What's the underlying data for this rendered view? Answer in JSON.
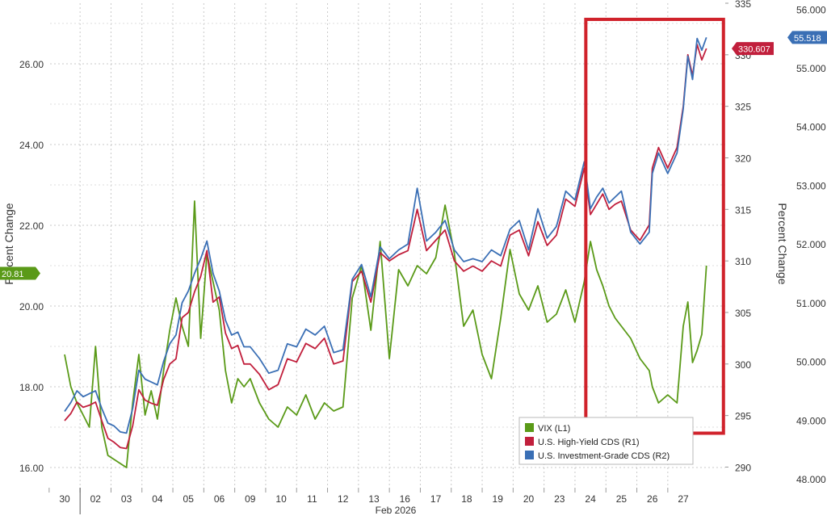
{
  "chart_data": {
    "type": "line",
    "title": "",
    "xlabel": "Feb 2026",
    "x_ticks": [
      "30",
      "02",
      "03",
      "04",
      "05",
      "06",
      "09",
      "10",
      "11",
      "12",
      "13",
      "16",
      "17",
      "18",
      "19",
      "20",
      "23",
      "24",
      "25",
      "26",
      "27"
    ],
    "axes": {
      "left": {
        "label": "Percent Change",
        "range": [
          15.5,
          27.5
        ],
        "ticks": [
          "16.00",
          "18.00",
          "20.00",
          "22.00",
          "24.00",
          "26.00"
        ]
      },
      "right1": {
        "label": "",
        "range": [
          288,
          335
        ],
        "ticks": [
          "290",
          "295",
          "300",
          "305",
          "310",
          "315",
          "320",
          "325",
          "330",
          "335"
        ]
      },
      "right2": {
        "label": "Percent Change",
        "range": [
          47.85,
          56.1
        ],
        "ticks": [
          "48.000",
          "49.000",
          "50.000",
          "51.000",
          "52.000",
          "53.000",
          "54.000",
          "55.000",
          "56.000"
        ]
      }
    },
    "grid": true,
    "legend_position": "bottom-right",
    "series": [
      {
        "name": "VIX (L1)",
        "axis": "left",
        "color": "#5a9a18",
        "last_label": "20.81",
        "x": [
          0,
          0.2,
          0.4,
          0.6,
          0.8,
          1.0,
          1.2,
          1.4,
          1.6,
          1.8,
          2.0,
          2.2,
          2.4,
          2.6,
          2.8,
          3.0,
          3.2,
          3.4,
          3.6,
          3.8,
          4.0,
          4.2,
          4.4,
          4.6,
          4.8,
          5.0,
          5.2,
          5.4,
          5.6,
          5.8,
          6.0,
          6.3,
          6.6,
          6.9,
          7.2,
          7.5,
          7.8,
          8.1,
          8.4,
          8.7,
          9.0,
          9.3,
          9.6,
          9.9,
          10.2,
          10.5,
          10.8,
          11.1,
          11.4,
          11.7,
          12.0,
          12.3,
          12.6,
          12.9,
          13.2,
          13.5,
          13.8,
          14.1,
          14.4,
          14.7,
          15.0,
          15.3,
          15.6,
          15.9,
          16.2,
          16.5,
          16.8,
          17.0,
          17.2,
          17.4,
          17.6,
          17.8,
          18.0,
          18.3,
          18.6,
          18.9,
          19.0,
          19.2,
          19.5,
          19.8,
          20.0,
          20.15,
          20.3,
          20.45,
          20.6,
          20.75
        ],
        "y": [
          18.8,
          18.0,
          17.6,
          17.3,
          17.0,
          19.0,
          17.0,
          16.3,
          16.2,
          16.1,
          16.0,
          17.6,
          18.8,
          17.3,
          17.9,
          17.2,
          18.4,
          19.4,
          20.2,
          19.5,
          19.0,
          22.6,
          19.2,
          21.3,
          20.6,
          19.9,
          18.4,
          17.6,
          18.2,
          18.0,
          18.2,
          17.6,
          17.2,
          17.0,
          17.5,
          17.3,
          17.8,
          17.2,
          17.6,
          17.4,
          17.5,
          20.2,
          21.0,
          19.4,
          21.6,
          18.7,
          20.9,
          20.5,
          21.0,
          20.8,
          21.2,
          22.5,
          21.3,
          19.5,
          19.9,
          18.8,
          18.2,
          19.7,
          21.4,
          20.3,
          19.9,
          20.5,
          19.6,
          19.8,
          20.4,
          19.6,
          20.6,
          21.6,
          20.9,
          20.5,
          20.0,
          19.7,
          19.5,
          19.2,
          18.7,
          18.4,
          18.0,
          17.6,
          17.8,
          17.6,
          19.5,
          20.1,
          18.6,
          18.9,
          19.3,
          21.0
        ]
      },
      {
        "name": "U.S. High-Yield CDS (R1)",
        "axis": "right1",
        "color": "#c11f3c",
        "last_label": "330.607",
        "x": [
          0,
          0.2,
          0.4,
          0.6,
          0.8,
          1.0,
          1.2,
          1.4,
          1.6,
          1.8,
          2.0,
          2.2,
          2.4,
          2.6,
          2.8,
          3.0,
          3.2,
          3.4,
          3.6,
          3.8,
          4.0,
          4.2,
          4.4,
          4.6,
          4.8,
          5.0,
          5.2,
          5.4,
          5.6,
          5.8,
          6.0,
          6.3,
          6.6,
          6.9,
          7.2,
          7.5,
          7.8,
          8.1,
          8.4,
          8.7,
          9.0,
          9.3,
          9.6,
          9.9,
          10.2,
          10.5,
          10.8,
          11.1,
          11.4,
          11.7,
          12.0,
          12.3,
          12.6,
          12.9,
          13.2,
          13.5,
          13.8,
          14.1,
          14.4,
          14.7,
          15.0,
          15.3,
          15.6,
          15.9,
          16.2,
          16.5,
          16.8,
          17.0,
          17.2,
          17.4,
          17.6,
          17.8,
          18.0,
          18.3,
          18.6,
          18.9,
          19.0,
          19.2,
          19.5,
          19.8,
          20.0,
          20.15,
          20.3,
          20.45,
          20.6,
          20.75
        ],
        "y": [
          294.5,
          295.2,
          296.3,
          295.8,
          296.0,
          296.3,
          294.5,
          292.8,
          292.4,
          291.9,
          291.8,
          294.0,
          297.5,
          296.5,
          296.2,
          296.0,
          298.5,
          300.0,
          300.5,
          304.5,
          305.0,
          307.0,
          308.5,
          311.0,
          306.0,
          306.5,
          303.0,
          301.5,
          301.8,
          300.0,
          300.0,
          299.0,
          297.5,
          298.0,
          300.5,
          300.2,
          302.0,
          301.5,
          302.5,
          300.0,
          300.3,
          308.0,
          309.0,
          306.0,
          310.8,
          310.0,
          310.6,
          311.0,
          315.0,
          311.0,
          312.0,
          313.0,
          310.0,
          309.0,
          309.5,
          309.0,
          310.0,
          309.5,
          312.5,
          313.0,
          310.5,
          313.8,
          311.5,
          312.5,
          316.0,
          315.3,
          319.0,
          314.5,
          315.5,
          316.5,
          315.0,
          315.5,
          315.8,
          313.0,
          312.0,
          313.5,
          319.0,
          321.0,
          319.0,
          321.0,
          325.0,
          330.0,
          328.0,
          331.0,
          329.5,
          330.607
        ]
      },
      {
        "name": "U.S. Investment-Grade CDS (R2)",
        "axis": "right2",
        "color": "#3a6fb5",
        "last_label": "55.518",
        "x": [
          0,
          0.2,
          0.4,
          0.6,
          0.8,
          1.0,
          1.2,
          1.4,
          1.6,
          1.8,
          2.0,
          2.2,
          2.4,
          2.6,
          2.8,
          3.0,
          3.2,
          3.4,
          3.6,
          3.8,
          4.0,
          4.2,
          4.4,
          4.6,
          4.8,
          5.0,
          5.2,
          5.4,
          5.6,
          5.8,
          6.0,
          6.3,
          6.6,
          6.9,
          7.2,
          7.5,
          7.8,
          8.1,
          8.4,
          8.7,
          9.0,
          9.3,
          9.6,
          9.9,
          10.2,
          10.5,
          10.8,
          11.1,
          11.4,
          11.7,
          12.0,
          12.3,
          12.6,
          12.9,
          13.2,
          13.5,
          13.8,
          14.1,
          14.4,
          14.7,
          15.0,
          15.3,
          15.6,
          15.9,
          16.2,
          16.5,
          16.8,
          17.0,
          17.2,
          17.4,
          17.6,
          17.8,
          18.0,
          18.3,
          18.6,
          18.9,
          19.0,
          19.2,
          19.5,
          19.8,
          20.0,
          20.15,
          20.3,
          20.45,
          20.6,
          20.75
        ],
        "y": [
          49.15,
          49.3,
          49.5,
          49.4,
          49.45,
          49.5,
          49.2,
          48.95,
          48.9,
          48.8,
          48.78,
          49.2,
          49.85,
          49.7,
          49.65,
          49.6,
          50.0,
          50.3,
          50.45,
          51.0,
          51.2,
          51.5,
          51.75,
          52.05,
          51.5,
          51.2,
          50.7,
          50.45,
          50.5,
          50.25,
          50.25,
          50.05,
          49.8,
          49.85,
          50.3,
          50.25,
          50.55,
          50.45,
          50.6,
          50.15,
          50.2,
          51.4,
          51.65,
          51.1,
          51.95,
          51.75,
          51.9,
          52.0,
          52.95,
          52.05,
          52.2,
          52.4,
          51.9,
          51.7,
          51.75,
          51.7,
          51.9,
          51.8,
          52.25,
          52.4,
          51.9,
          52.6,
          52.1,
          52.3,
          52.9,
          52.75,
          53.4,
          52.6,
          52.8,
          52.95,
          52.7,
          52.8,
          52.9,
          52.2,
          52.0,
          52.2,
          53.2,
          53.55,
          53.2,
          53.55,
          54.3,
          55.2,
          54.8,
          55.5,
          55.3,
          55.518
        ]
      }
    ],
    "annotations": [
      {
        "type": "box",
        "color": "#d0222b",
        "x_range": [
          16.85,
          21.3
        ],
        "y_range": [
          16.85,
          27.1
        ],
        "axis": "left"
      }
    ]
  }
}
